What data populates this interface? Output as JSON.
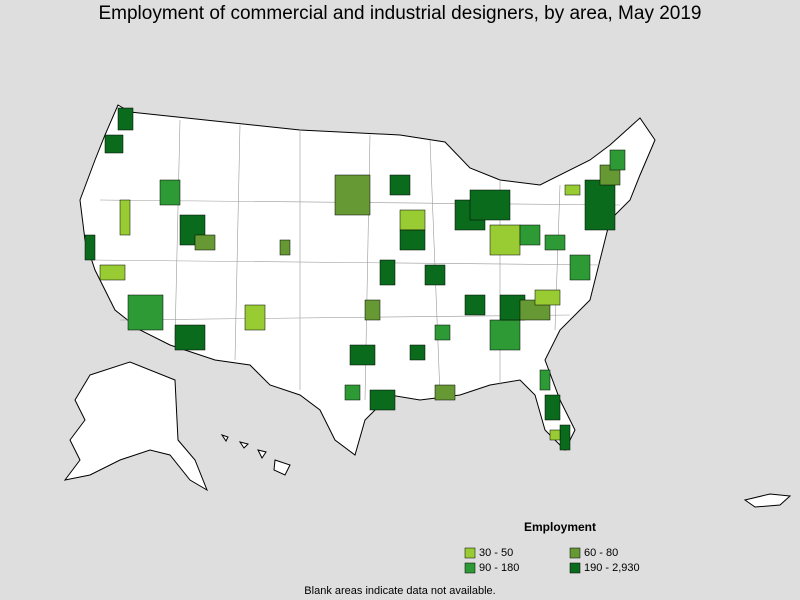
{
  "title": "Employment of commercial and industrial designers, by area, May 2019",
  "legend": {
    "title": "Employment",
    "items": [
      {
        "label": "30 - 50",
        "color": "#99cc33"
      },
      {
        "label": "60 - 80",
        "color": "#669933"
      },
      {
        "label": "90 - 180",
        "color": "#2e9a36"
      },
      {
        "label": "190 - 2,930",
        "color": "#0b6b1c"
      }
    ]
  },
  "note": "Blank areas indicate data not available."
}
